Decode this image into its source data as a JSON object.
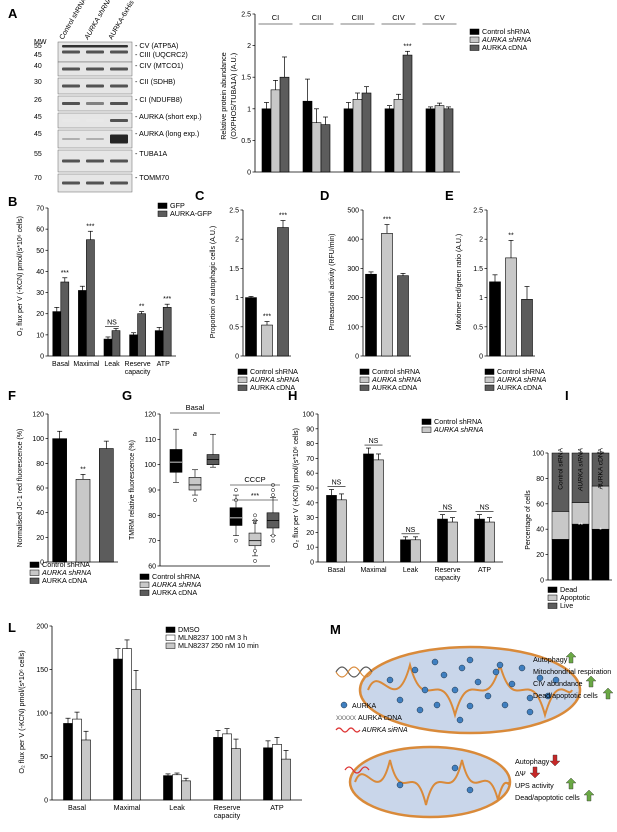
{
  "colors": {
    "black": "#000000",
    "dark": "#5c5c5c",
    "light": "#c8c8c8",
    "white": "#ffffff",
    "orange": "#d98a3a",
    "mito": "#c9d6ea",
    "dot": "#3f7fc0",
    "red": "#d33",
    "green": "#6aa845"
  },
  "panels": {
    "A": "A",
    "B": "B",
    "C": "C",
    "D": "D",
    "E": "E",
    "F": "F",
    "G": "G",
    "H": "H",
    "I": "I",
    "L": "L",
    "M": "M"
  },
  "blot": {
    "mw_header": "MW",
    "lanes": [
      "Control shRNA",
      "AURKA shRNA",
      "AURKA-6xHis"
    ],
    "rows": [
      {
        "mw": [
          "55",
          "45"
        ],
        "labels": [
          "CV (ATP5A)",
          "CIII (UQCRC2)"
        ]
      },
      {
        "mw": [
          "40"
        ],
        "labels": [
          "CIV (MTCO1)"
        ]
      },
      {
        "mw": [
          "30"
        ],
        "labels": [
          "CII (SDHB)"
        ]
      },
      {
        "mw": [
          "26"
        ],
        "labels": [
          "CI (NDUFB8)"
        ]
      },
      {
        "mw": [
          "45"
        ],
        "labels": [
          "AURKA (short exp.)"
        ]
      },
      {
        "mw": [
          "45"
        ],
        "labels": [
          "AURKA (long exp.)"
        ]
      },
      {
        "mw": [
          "55"
        ],
        "labels": [
          "TUBA1A"
        ]
      },
      {
        "mw": [
          "70"
        ],
        "labels": [
          "TOMM70"
        ]
      }
    ]
  },
  "chart_data": [
    {
      "panel": "A",
      "type": "bar",
      "categories": [
        "CI",
        "CII",
        "CIII",
        "CIV",
        "CV"
      ],
      "ylabel": "Relative protein abundance (OXPHOS/TUBA1A) (A.U.)",
      "ylim": [
        0,
        2.5
      ],
      "yticks": [
        0,
        0.5,
        1,
        1.5,
        2,
        2.5
      ],
      "legend": [
        "Control shRNA",
        "AURKA shRNA",
        "AURKA cDNA"
      ],
      "series": [
        {
          "name": "Control shRNA",
          "values": [
            1.0,
            1.12,
            1.0,
            1.0,
            1.0
          ],
          "errors": [
            0.1,
            0.35,
            0.1,
            0.05,
            0.03
          ]
        },
        {
          "name": "AURKA shRNA",
          "values": [
            1.3,
            0.78,
            1.15,
            1.15,
            1.05
          ],
          "errors": [
            0.15,
            0.22,
            0.1,
            0.08,
            0.04
          ]
        },
        {
          "name": "AURKA cDNA",
          "values": [
            1.5,
            0.75,
            1.25,
            1.85,
            1.0
          ],
          "errors": [
            0.32,
            0.12,
            0.1,
            0.06,
            0.03
          ]
        }
      ],
      "annotations": [
        {
          "category": "CIV",
          "series": 2,
          "text": "***"
        }
      ]
    },
    {
      "panel": "B",
      "type": "bar",
      "categories": [
        "Basal",
        "Maximal",
        "Leak",
        "Reserve capacity",
        "ATP"
      ],
      "ylabel": "O2 flux per V (-KCN) pmol/(s*10^6 cells)",
      "ylim": [
        0,
        70
      ],
      "yticks": [
        0,
        10,
        20,
        30,
        40,
        50,
        60,
        70
      ],
      "legend": [
        "GFP",
        "AURKA-GFP"
      ],
      "series": [
        {
          "name": "GFP",
          "values": [
            21,
            31,
            8,
            10,
            12
          ],
          "errors": [
            2,
            2,
            1,
            1,
            1.5
          ]
        },
        {
          "name": "AURKA-GFP",
          "values": [
            35,
            55,
            12,
            20,
            23
          ],
          "errors": [
            2,
            4,
            1,
            1,
            1.5
          ]
        }
      ],
      "annotations": [
        {
          "category": "Basal",
          "series": 1,
          "text": "***"
        },
        {
          "category": "Maximal",
          "series": 1,
          "text": "***"
        },
        {
          "category": "Leak",
          "series": 1,
          "text": "NS"
        },
        {
          "category": "Reserve capacity",
          "series": 1,
          "text": "**"
        },
        {
          "category": "ATP",
          "series": 1,
          "text": "***"
        }
      ]
    },
    {
      "panel": "C",
      "type": "bar",
      "categories": [
        "Control shRNA",
        "AURKA shRNA",
        "AURKA cDNA"
      ],
      "ylabel": "Proportion of autophagic cells (A.U.)",
      "ylim": [
        0,
        2.5
      ],
      "yticks": [
        0,
        0.5,
        1,
        1.5,
        2,
        2.5
      ],
      "values": [
        1.0,
        0.53,
        2.2
      ],
      "errors": [
        0.02,
        0.06,
        0.12
      ],
      "annotations": [
        "",
        "***",
        "***"
      ]
    },
    {
      "panel": "D",
      "type": "bar",
      "categories": [
        "Control shRNA",
        "AURKA shRNA",
        "AURKA cDNA"
      ],
      "ylabel": "Proteasomal activity (RFU/min)",
      "ylim": [
        0,
        500
      ],
      "yticks": [
        0,
        100,
        200,
        300,
        400,
        500
      ],
      "values": [
        280,
        420,
        275
      ],
      "errors": [
        8,
        30,
        8
      ],
      "annotations": [
        "",
        "***",
        ""
      ]
    },
    {
      "panel": "E",
      "type": "bar",
      "categories": [
        "Control shRNA",
        "AURKA shRNA",
        "AURKA cDNA"
      ],
      "ylabel": "Mitotimer red/green ratio (A.U.)",
      "ylim": [
        0,
        2.5
      ],
      "yticks": [
        0,
        0.5,
        1,
        1.5,
        2,
        2.5
      ],
      "values": [
        1.27,
        1.68,
        0.97
      ],
      "errors": [
        0.12,
        0.3,
        0.22
      ],
      "annotations": [
        "",
        "**",
        ""
      ]
    },
    {
      "panel": "F",
      "type": "bar",
      "categories": [
        "Control shRNA",
        "AURKA shRNA",
        "AURKA cDNA"
      ],
      "ylabel": "Normalised JC-1 red fluorescence (%)",
      "ylim": [
        0,
        120
      ],
      "yticks": [
        0,
        20,
        40,
        60,
        80,
        100,
        120
      ],
      "values": [
        100,
        67,
        92
      ],
      "errors": [
        6,
        4,
        6
      ],
      "annotations": [
        "",
        "**",
        ""
      ]
    },
    {
      "panel": "G",
      "type": "box",
      "groups": [
        "Basal",
        "CCCP"
      ],
      "categories": [
        "Control shRNA",
        "AURKA shRNA",
        "AURKA cDNA"
      ],
      "ylabel": "TMRM relative fluorescence (%)",
      "ylim": [
        60,
        120
      ],
      "yticks": [
        60,
        70,
        80,
        90,
        100,
        110,
        120
      ],
      "boxes": [
        {
          "group": "Basal",
          "series": "Control shRNA",
          "min": 93,
          "q1": 97,
          "median": 101,
          "q3": 106,
          "max": 114
        },
        {
          "group": "Basal",
          "series": "AURKA shRNA",
          "min": 88,
          "q1": 90,
          "median": 92,
          "q3": 95,
          "max": 98
        },
        {
          "group": "Basal",
          "series": "AURKA cDNA",
          "min": 99,
          "q1": 100,
          "median": 102,
          "q3": 104,
          "max": 112
        },
        {
          "group": "CCCP",
          "series": "Control shRNA",
          "min": 72,
          "q1": 76,
          "median": 79,
          "q3": 83,
          "max": 88
        },
        {
          "group": "CCCP",
          "series": "AURKA shRNA",
          "min": 64,
          "q1": 68,
          "median": 70,
          "q3": 73,
          "max": 78
        },
        {
          "group": "CCCP",
          "series": "AURKA cDNA",
          "min": 72,
          "q1": 75,
          "median": 78,
          "q3": 81,
          "max": 87
        }
      ],
      "outliers": [
        {
          "group": "Basal",
          "series": "AURKA shRNA",
          "values": [
            86
          ]
        },
        {
          "group": "CCCP",
          "series": "Control shRNA",
          "values": [
            70,
            86,
            90
          ]
        },
        {
          "group": "CCCP",
          "series": "AURKA shRNA",
          "values": [
            62,
            66,
            78,
            80
          ]
        },
        {
          "group": "CCCP",
          "series": "AURKA cDNA",
          "values": [
            70,
            72,
            88,
            90,
            92
          ]
        }
      ],
      "annotations": [
        "a",
        "***",
        "a"
      ]
    },
    {
      "panel": "H",
      "type": "bar",
      "categories": [
        "Basal",
        "Maximal",
        "Leak",
        "Reserve capacity",
        "ATP"
      ],
      "ylabel": "O2 flux per V (-KCN) pmol/(s*10^6 cells)",
      "ylim": [
        0,
        100
      ],
      "yticks": [
        0,
        10,
        20,
        30,
        40,
        50,
        60,
        70,
        80,
        90,
        100
      ],
      "legend": [
        "Control shRNA",
        "AURKA shRNA"
      ],
      "series": [
        {
          "name": "Control shRNA",
          "values": [
            45,
            73,
            15,
            29,
            29
          ],
          "errors": [
            4,
            4,
            2,
            3,
            3
          ]
        },
        {
          "name": "AURKA shRNA",
          "values": [
            42,
            69,
            15,
            27,
            27
          ],
          "errors": [
            4,
            4,
            2,
            3,
            3
          ]
        }
      ],
      "annotations": [
        "NS",
        "NS",
        "NS",
        "NS",
        "NS"
      ]
    },
    {
      "panel": "I",
      "type": "stacked_bar",
      "categories": [
        "Control siRNA",
        "AURKA siRNA",
        "AURKA cDNA"
      ],
      "ylabel": "Percentage of cells",
      "ylim": [
        0,
        100
      ],
      "yticks": [
        0,
        20,
        40,
        60,
        80,
        100
      ],
      "legend": [
        "Dead",
        "Apoptotic",
        "Live"
      ],
      "series": [
        {
          "name": "Dead",
          "values": [
            32,
            44,
            40
          ]
        },
        {
          "name": "Apoptotic",
          "values": [
            22,
            17,
            34
          ]
        },
        {
          "name": "Live",
          "values": [
            46,
            39,
            26
          ]
        }
      ],
      "annotations": [
        {
          "category": "AURKA siRNA",
          "text": "**"
        },
        {
          "category": "AURKA siRNA",
          "text": "*"
        },
        {
          "category": "AURKA cDNA",
          "text": "***"
        },
        {
          "category": "AURKA cDNA",
          "text": "**"
        },
        {
          "category": "AURKA cDNA",
          "text": "*"
        }
      ]
    },
    {
      "panel": "L",
      "type": "bar",
      "categories": [
        "Basal",
        "Maximal",
        "Leak",
        "Reserve capacity",
        "ATP"
      ],
      "ylabel": "O2 flux per V (-KCN) pmol/(s*10^6 cells)",
      "ylim": [
        0,
        200
      ],
      "yticks": [
        0,
        50,
        100,
        150,
        200
      ],
      "legend": [
        "DMSO",
        "MLN8237 100 nM 3 h",
        "MLN8237 250 nM 10 min"
      ],
      "series": [
        {
          "name": "DMSO",
          "values": [
            88,
            162,
            28,
            72,
            60
          ],
          "errors": [
            6,
            12,
            2,
            8,
            8
          ]
        },
        {
          "name": "MLN8237 100 nM 3 h",
          "values": [
            93,
            174,
            29,
            76,
            64
          ],
          "errors": [
            8,
            10,
            2,
            6,
            8
          ]
        },
        {
          "name": "MLN8237 250 nM 10 min",
          "values": [
            69,
            127,
            22,
            59,
            47
          ],
          "errors": [
            10,
            22,
            3,
            11,
            10
          ]
        }
      ]
    }
  ],
  "diagram": {
    "legend_items": [
      "AURKA",
      "AURKA cDNA",
      "AURKA siRNA"
    ],
    "top_effects": [
      "Autophagy",
      "Mitochondrial respiration",
      "CIV abundance",
      "Dead/apoptotic cells"
    ],
    "top_arrows": [
      "up",
      "up",
      "up",
      "up"
    ],
    "bottom_effects": [
      "Autophagy",
      "ΔΨ",
      "UPS activity",
      "Dead/apoptotic cells"
    ],
    "bottom_arrows": [
      "down",
      "down",
      "up",
      "up"
    ]
  }
}
